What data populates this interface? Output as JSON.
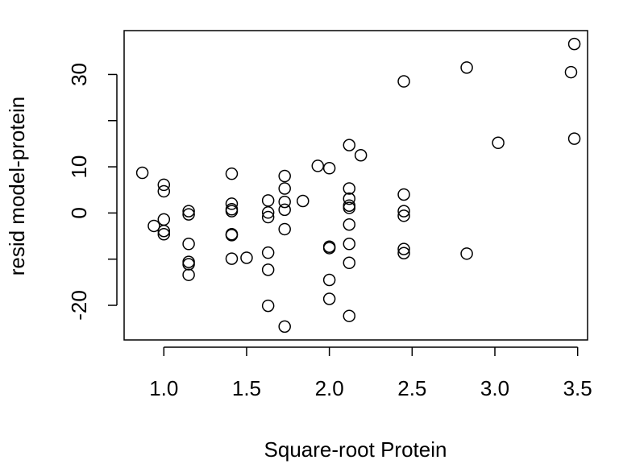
{
  "chart_data": {
    "type": "scatter",
    "title": "",
    "xlabel": "Square-root Protein",
    "ylabel": "resid model-protein",
    "xlim": [
      0.76,
      3.56
    ],
    "ylim": [
      -27.5,
      39.5
    ],
    "x_ticks": [
      1.0,
      1.5,
      2.0,
      2.5,
      3.0,
      3.5
    ],
    "x_tick_labels": [
      "1.0",
      "1.5",
      "2.0",
      "2.5",
      "3.0",
      "3.5"
    ],
    "y_ticks": [
      -20,
      -10,
      0,
      10,
      20,
      30
    ],
    "y_tick_labels": [
      "-20",
      "",
      "0",
      "10",
      "",
      "30"
    ],
    "grid": false,
    "marker": "open-circle",
    "colors": {
      "points": "#000000",
      "frame": "#000000",
      "background": "#ffffff"
    },
    "points": [
      {
        "x": 0.87,
        "y": 8.7
      },
      {
        "x": 0.94,
        "y": -2.8
      },
      {
        "x": 1.0,
        "y": 6.1
      },
      {
        "x": 1.0,
        "y": 4.7
      },
      {
        "x": 1.0,
        "y": -1.4
      },
      {
        "x": 1.0,
        "y": -3.9
      },
      {
        "x": 1.0,
        "y": -4.6
      },
      {
        "x": 1.15,
        "y": 0.4
      },
      {
        "x": 1.15,
        "y": -0.3
      },
      {
        "x": 1.15,
        "y": -6.7
      },
      {
        "x": 1.15,
        "y": -10.6
      },
      {
        "x": 1.15,
        "y": -11.1
      },
      {
        "x": 1.15,
        "y": -13.4
      },
      {
        "x": 1.41,
        "y": 8.5
      },
      {
        "x": 1.41,
        "y": 2.0
      },
      {
        "x": 1.41,
        "y": 0.8
      },
      {
        "x": 1.41,
        "y": 0.4
      },
      {
        "x": 1.41,
        "y": -4.6
      },
      {
        "x": 1.41,
        "y": -4.8
      },
      {
        "x": 1.41,
        "y": -9.9
      },
      {
        "x": 1.5,
        "y": -9.7
      },
      {
        "x": 1.63,
        "y": 2.7
      },
      {
        "x": 1.63,
        "y": 0.1
      },
      {
        "x": 1.63,
        "y": -0.9
      },
      {
        "x": 1.63,
        "y": -8.6
      },
      {
        "x": 1.63,
        "y": -12.3
      },
      {
        "x": 1.63,
        "y": -20.1
      },
      {
        "x": 1.73,
        "y": 8.0
      },
      {
        "x": 1.73,
        "y": 5.3
      },
      {
        "x": 1.73,
        "y": 2.4
      },
      {
        "x": 1.73,
        "y": 0.7
      },
      {
        "x": 1.73,
        "y": -3.5
      },
      {
        "x": 1.73,
        "y": -24.6
      },
      {
        "x": 1.84,
        "y": 2.6
      },
      {
        "x": 1.93,
        "y": 10.2
      },
      {
        "x": 2.0,
        "y": 9.7
      },
      {
        "x": 2.0,
        "y": -7.3
      },
      {
        "x": 2.0,
        "y": -7.6
      },
      {
        "x": 2.0,
        "y": -14.5
      },
      {
        "x": 2.0,
        "y": -18.6
      },
      {
        "x": 2.12,
        "y": 14.7
      },
      {
        "x": 2.12,
        "y": 5.3
      },
      {
        "x": 2.12,
        "y": 3.1
      },
      {
        "x": 2.12,
        "y": 1.6
      },
      {
        "x": 2.12,
        "y": 1.1
      },
      {
        "x": 2.12,
        "y": -2.5
      },
      {
        "x": 2.12,
        "y": -6.7
      },
      {
        "x": 2.12,
        "y": -10.8
      },
      {
        "x": 2.12,
        "y": -22.3
      },
      {
        "x": 2.19,
        "y": 12.5
      },
      {
        "x": 2.45,
        "y": 28.5
      },
      {
        "x": 2.45,
        "y": 4.0
      },
      {
        "x": 2.45,
        "y": 0.4
      },
      {
        "x": 2.45,
        "y": -0.6
      },
      {
        "x": 2.45,
        "y": -7.8
      },
      {
        "x": 2.45,
        "y": -8.7
      },
      {
        "x": 2.83,
        "y": 31.5
      },
      {
        "x": 2.83,
        "y": -8.8
      },
      {
        "x": 3.02,
        "y": 15.2
      },
      {
        "x": 3.46,
        "y": 30.5
      },
      {
        "x": 3.48,
        "y": 36.6
      },
      {
        "x": 3.48,
        "y": 16.1
      }
    ]
  }
}
